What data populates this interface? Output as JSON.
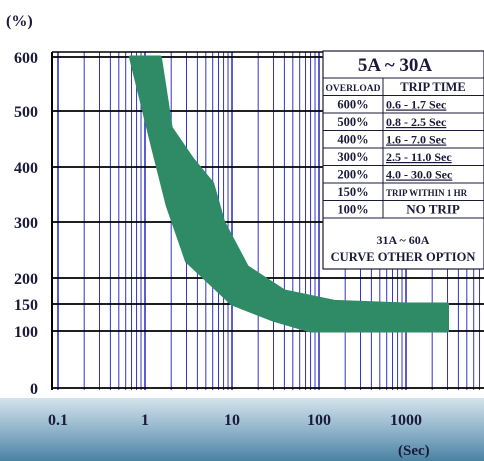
{
  "chart_data": {
    "type": "area",
    "title": "",
    "ylabel": "(%)",
    "xlabel": "(Sec)",
    "x_scale": "log",
    "x_ticks": [
      "0.1",
      "1",
      "10",
      "100",
      "1000"
    ],
    "y_ticks": [
      "0",
      "100",
      "150",
      "200",
      "300",
      "400",
      "500",
      "600"
    ],
    "ylim": [
      0,
      600
    ],
    "grid": true,
    "colors": {
      "band": "#2e8b65",
      "grid_minor": "#3333cc",
      "grid_major": "#000000",
      "axis_bar_top": "#cfdfe8",
      "axis_bar_bottom": "#4f86a6"
    },
    "band_upper": [
      {
        "x": 1.5,
        "y": 600
      },
      {
        "x": 2.0,
        "y": 470
      },
      {
        "x": 3.5,
        "y": 415
      },
      {
        "x": 6.0,
        "y": 370
      },
      {
        "x": 8.0,
        "y": 300
      },
      {
        "x": 15,
        "y": 220
      },
      {
        "x": 40,
        "y": 175
      },
      {
        "x": 150,
        "y": 155
      },
      {
        "x": 1000,
        "y": 150
      },
      {
        "x": 3000,
        "y": 150
      }
    ],
    "band_lower": [
      {
        "x": 0.68,
        "y": 600
      },
      {
        "x": 0.9,
        "y": 520
      },
      {
        "x": 1.2,
        "y": 440
      },
      {
        "x": 1.8,
        "y": 330
      },
      {
        "x": 3.0,
        "y": 230
      },
      {
        "x": 10,
        "y": 150
      },
      {
        "x": 30,
        "y": 120
      },
      {
        "x": 80,
        "y": 100
      },
      {
        "x": 3000,
        "y": 100
      }
    ]
  },
  "table": {
    "title": "5A ~ 30A",
    "headers": [
      "OVERLOAD",
      "TRIP TIME"
    ],
    "rows": [
      [
        "600%",
        "0.6 - 1.7 Sec"
      ],
      [
        "500%",
        "0.8 - 2.5 Sec"
      ],
      [
        "400%",
        "1.6 - 7.0 Sec"
      ],
      [
        "300%",
        "2.5 - 11.0 Sec"
      ],
      [
        "200%",
        "4.0 - 30.0 Sec"
      ],
      [
        "150%",
        "TRIP WITHIN 1 HR"
      ],
      [
        "100%",
        "NO TRIP"
      ]
    ],
    "footer_line1": "31A ~ 60A",
    "footer_line2": "CURVE OTHER OPTION"
  }
}
